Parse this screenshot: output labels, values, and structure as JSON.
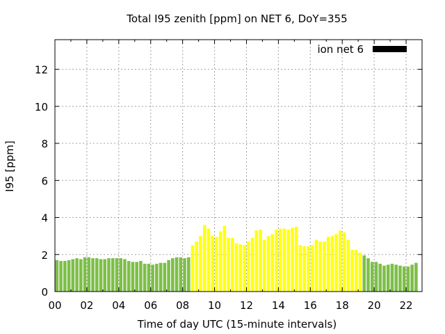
{
  "chart_data": {
    "type": "bar",
    "title": "Total I95 zenith [ppm] on NET 6, DoY=355",
    "xlabel": "Time of day UTC (15-minute intervals)",
    "ylabel": "I95 [ppm]",
    "legend": {
      "label": "ion net 6",
      "position": "top-right",
      "color": "#000000"
    },
    "grid": true,
    "xlim": [
      0,
      23
    ],
    "ylim": [
      0,
      13.6
    ],
    "x_ticks": [
      "00",
      "02",
      "04",
      "06",
      "08",
      "10",
      "12",
      "14",
      "16",
      "18",
      "20",
      "22"
    ],
    "x_tick_values": [
      0,
      2,
      4,
      6,
      8,
      10,
      12,
      14,
      16,
      18,
      20,
      22
    ],
    "y_ticks": [
      "0",
      "2",
      "4",
      "6",
      "8",
      "10",
      "12"
    ],
    "y_tick_values": [
      0,
      2,
      4,
      6,
      8,
      10,
      12
    ],
    "colors": {
      "low": "#7dbf48",
      "high": "#ffff14",
      "grid": "#a0a0a0"
    },
    "bar_interval_hours": 0.25,
    "series": [
      {
        "x_start": 0,
        "values": [
          1.7,
          1.65,
          1.65,
          1.7,
          1.75,
          1.8,
          1.75,
          1.85,
          1.85,
          1.8,
          1.8,
          1.75,
          1.75,
          1.8,
          1.8,
          1.8,
          1.8,
          1.75,
          1.65,
          1.6,
          1.6,
          1.65,
          1.5,
          1.5,
          1.45,
          1.5,
          1.55,
          1.55,
          1.7,
          1.8,
          1.85,
          1.85,
          1.8,
          1.85,
          2.5,
          2.7,
          3.0,
          3.6,
          3.4,
          3.0,
          2.95,
          3.25,
          3.55,
          2.9,
          2.9,
          2.6,
          2.55,
          2.5,
          2.7,
          2.9,
          3.3,
          3.35,
          2.8,
          3.0,
          3.1,
          3.35,
          3.4,
          3.4,
          3.35,
          3.45,
          3.5,
          2.5,
          2.45,
          2.45,
          2.5,
          2.8,
          2.7,
          2.7,
          2.95,
          3.0,
          3.1,
          3.3,
          3.2,
          2.8,
          2.25,
          2.25,
          2.1,
          1.95,
          1.8,
          1.6,
          1.6,
          1.5,
          1.4,
          1.45,
          1.5,
          1.45,
          1.4,
          1.35,
          1.35,
          1.45,
          1.55
        ],
        "colors": [
          "low",
          "low",
          "low",
          "low",
          "low",
          "low",
          "low",
          "low",
          "low",
          "low",
          "low",
          "low",
          "low",
          "low",
          "low",
          "low",
          "low",
          "low",
          "low",
          "low",
          "low",
          "low",
          "low",
          "low",
          "low",
          "low",
          "low",
          "low",
          "low",
          "low",
          "low",
          "low",
          "low",
          "low",
          "high",
          "high",
          "high",
          "high",
          "high",
          "high",
          "high",
          "high",
          "high",
          "high",
          "high",
          "high",
          "high",
          "high",
          "high",
          "high",
          "high",
          "high",
          "high",
          "high",
          "high",
          "high",
          "high",
          "high",
          "high",
          "high",
          "high",
          "high",
          "high",
          "high",
          "high",
          "high",
          "high",
          "high",
          "high",
          "high",
          "high",
          "high",
          "high",
          "high",
          "high",
          "high",
          "high",
          "low",
          "low",
          "low",
          "low",
          "low",
          "low",
          "low",
          "low",
          "low",
          "low",
          "low",
          "low",
          "low",
          "low"
        ]
      }
    ]
  }
}
